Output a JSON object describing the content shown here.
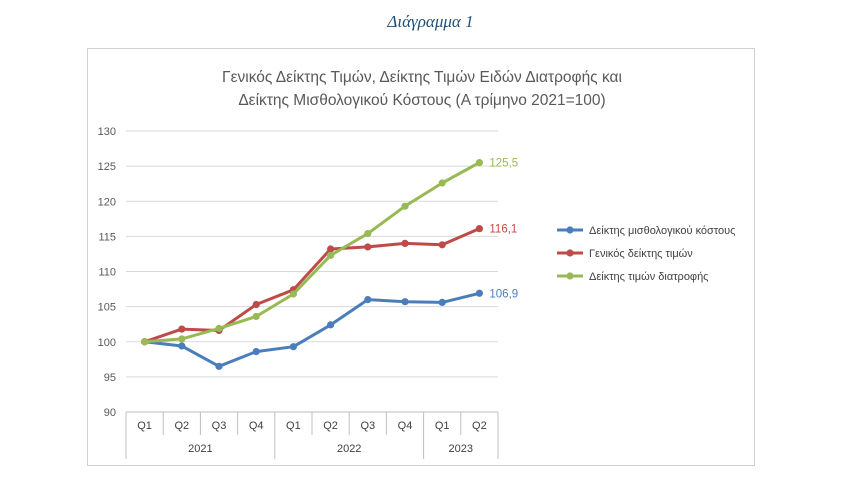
{
  "caption": "Διάγραμμα 1",
  "colors": {
    "wage": "#4a7ebb",
    "general": "#be4b48",
    "food": "#98b954",
    "grid": "#d9d9d9",
    "axis": "#bfbfbf"
  },
  "chart_data": {
    "type": "line",
    "title_line1": "Γενικός Δείκτης Τιμών, Δείκτης Τιμών Ειδών Διατροφής και",
    "title_line2": "Δείκτης Μισθολογικού Κόστους (Α τρίμηνο 2021=100)",
    "categories": [
      "Q1",
      "Q2",
      "Q3",
      "Q4",
      "Q1",
      "Q2",
      "Q3",
      "Q4",
      "Q1",
      "Q2"
    ],
    "groups": [
      {
        "label": "2021",
        "span": 4
      },
      {
        "label": "2022",
        "span": 4
      },
      {
        "label": "2023",
        "span": 2
      }
    ],
    "ylim": [
      90,
      130
    ],
    "yticks": [
      "90",
      "95",
      "100",
      "105",
      "110",
      "115",
      "120",
      "125",
      "130"
    ],
    "grid": true,
    "legend_position": "right",
    "series": [
      {
        "name": "Δείκτης μισθολογικού κόστους",
        "color_key": "wage",
        "values": [
          100,
          99.4,
          96.5,
          98.6,
          99.3,
          102.4,
          106.0,
          105.7,
          105.6,
          106.9
        ],
        "end_label": "106,9"
      },
      {
        "name": "Γενικός δείκτης τιμών",
        "color_key": "general",
        "values": [
          100,
          101.8,
          101.6,
          105.3,
          107.4,
          113.2,
          113.5,
          114.0,
          113.8,
          116.1
        ],
        "end_label": "116,1"
      },
      {
        "name": "Δείκτης τιμών διατροφής",
        "color_key": "food",
        "values": [
          100,
          100.4,
          101.9,
          103.6,
          106.8,
          112.3,
          115.4,
          119.3,
          122.6,
          125.5
        ],
        "end_label": "125,5"
      }
    ]
  }
}
